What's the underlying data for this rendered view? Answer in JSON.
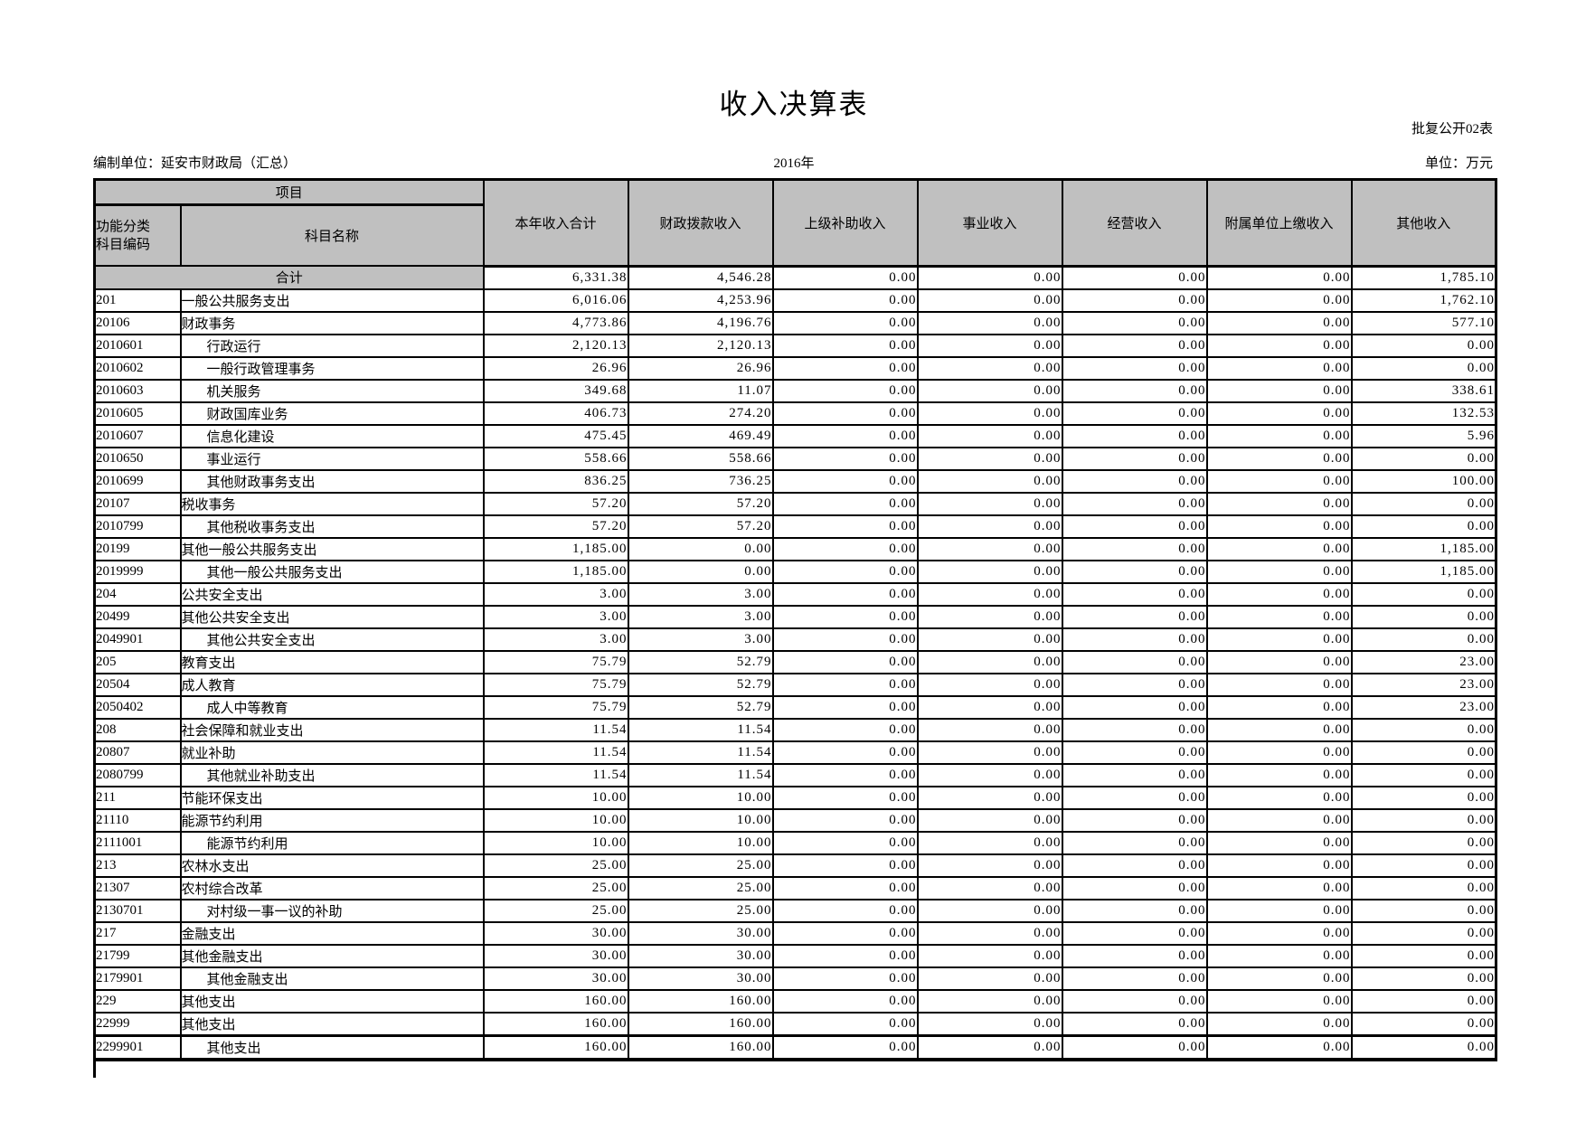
{
  "page": {
    "title": "收入决算表",
    "doc_number": "批复公开02表",
    "org_label": "编制单位：延安市财政局（汇总）",
    "year": "2016年",
    "unit_label": "单位：万元",
    "header_bg_color": "#c0c0c0"
  },
  "table": {
    "header": {
      "project": "项目",
      "code_header_lines": [
        "功能分类",
        "科目编码"
      ],
      "name_header": "科目名称",
      "value_columns": [
        "本年收入合计",
        "财政拨款收入",
        "上级补助收入",
        "事业收入",
        "经营收入",
        "附属单位上缴收入",
        "其他收入"
      ]
    },
    "total_row": {
      "label": "合计",
      "values": [
        "6,331.38",
        "4,546.28",
        "0.00",
        "0.00",
        "0.00",
        "0.00",
        "1,785.10"
      ]
    },
    "rows": [
      {
        "code": "201",
        "name": "一般公共服务支出",
        "indent": false,
        "values": [
          "6,016.06",
          "4,253.96",
          "0.00",
          "0.00",
          "0.00",
          "0.00",
          "1,762.10"
        ]
      },
      {
        "code": "20106",
        "name": "财政事务",
        "indent": false,
        "values": [
          "4,773.86",
          "4,196.76",
          "0.00",
          "0.00",
          "0.00",
          "0.00",
          "577.10"
        ]
      },
      {
        "code": "2010601",
        "name": "行政运行",
        "indent": true,
        "values": [
          "2,120.13",
          "2,120.13",
          "0.00",
          "0.00",
          "0.00",
          "0.00",
          "0.00"
        ]
      },
      {
        "code": "2010602",
        "name": "一般行政管理事务",
        "indent": true,
        "values": [
          "26.96",
          "26.96",
          "0.00",
          "0.00",
          "0.00",
          "0.00",
          "0.00"
        ]
      },
      {
        "code": "2010603",
        "name": "机关服务",
        "indent": true,
        "values": [
          "349.68",
          "11.07",
          "0.00",
          "0.00",
          "0.00",
          "0.00",
          "338.61"
        ]
      },
      {
        "code": "2010605",
        "name": "财政国库业务",
        "indent": true,
        "values": [
          "406.73",
          "274.20",
          "0.00",
          "0.00",
          "0.00",
          "0.00",
          "132.53"
        ]
      },
      {
        "code": "2010607",
        "name": "信息化建设",
        "indent": true,
        "values": [
          "475.45",
          "469.49",
          "0.00",
          "0.00",
          "0.00",
          "0.00",
          "5.96"
        ]
      },
      {
        "code": "2010650",
        "name": "事业运行",
        "indent": true,
        "values": [
          "558.66",
          "558.66",
          "0.00",
          "0.00",
          "0.00",
          "0.00",
          "0.00"
        ]
      },
      {
        "code": "2010699",
        "name": "其他财政事务支出",
        "indent": true,
        "values": [
          "836.25",
          "736.25",
          "0.00",
          "0.00",
          "0.00",
          "0.00",
          "100.00"
        ]
      },
      {
        "code": "20107",
        "name": "税收事务",
        "indent": false,
        "values": [
          "57.20",
          "57.20",
          "0.00",
          "0.00",
          "0.00",
          "0.00",
          "0.00"
        ]
      },
      {
        "code": "2010799",
        "name": "其他税收事务支出",
        "indent": true,
        "values": [
          "57.20",
          "57.20",
          "0.00",
          "0.00",
          "0.00",
          "0.00",
          "0.00"
        ]
      },
      {
        "code": "20199",
        "name": "其他一般公共服务支出",
        "indent": false,
        "values": [
          "1,185.00",
          "0.00",
          "0.00",
          "0.00",
          "0.00",
          "0.00",
          "1,185.00"
        ]
      },
      {
        "code": "2019999",
        "name": "其他一般公共服务支出",
        "indent": true,
        "values": [
          "1,185.00",
          "0.00",
          "0.00",
          "0.00",
          "0.00",
          "0.00",
          "1,185.00"
        ]
      },
      {
        "code": "204",
        "name": "公共安全支出",
        "indent": false,
        "values": [
          "3.00",
          "3.00",
          "0.00",
          "0.00",
          "0.00",
          "0.00",
          "0.00"
        ]
      },
      {
        "code": "20499",
        "name": "其他公共安全支出",
        "indent": false,
        "values": [
          "3.00",
          "3.00",
          "0.00",
          "0.00",
          "0.00",
          "0.00",
          "0.00"
        ]
      },
      {
        "code": "2049901",
        "name": "其他公共安全支出",
        "indent": true,
        "values": [
          "3.00",
          "3.00",
          "0.00",
          "0.00",
          "0.00",
          "0.00",
          "0.00"
        ]
      },
      {
        "code": "205",
        "name": "教育支出",
        "indent": false,
        "values": [
          "75.79",
          "52.79",
          "0.00",
          "0.00",
          "0.00",
          "0.00",
          "23.00"
        ]
      },
      {
        "code": "20504",
        "name": "成人教育",
        "indent": false,
        "values": [
          "75.79",
          "52.79",
          "0.00",
          "0.00",
          "0.00",
          "0.00",
          "23.00"
        ]
      },
      {
        "code": "2050402",
        "name": "成人中等教育",
        "indent": true,
        "values": [
          "75.79",
          "52.79",
          "0.00",
          "0.00",
          "0.00",
          "0.00",
          "23.00"
        ]
      },
      {
        "code": "208",
        "name": "社会保障和就业支出",
        "indent": false,
        "values": [
          "11.54",
          "11.54",
          "0.00",
          "0.00",
          "0.00",
          "0.00",
          "0.00"
        ]
      },
      {
        "code": "20807",
        "name": "就业补助",
        "indent": false,
        "values": [
          "11.54",
          "11.54",
          "0.00",
          "0.00",
          "0.00",
          "0.00",
          "0.00"
        ]
      },
      {
        "code": "2080799",
        "name": "其他就业补助支出",
        "indent": true,
        "values": [
          "11.54",
          "11.54",
          "0.00",
          "0.00",
          "0.00",
          "0.00",
          "0.00"
        ]
      },
      {
        "code": "211",
        "name": "节能环保支出",
        "indent": false,
        "values": [
          "10.00",
          "10.00",
          "0.00",
          "0.00",
          "0.00",
          "0.00",
          "0.00"
        ]
      },
      {
        "code": "21110",
        "name": "能源节约利用",
        "indent": false,
        "values": [
          "10.00",
          "10.00",
          "0.00",
          "0.00",
          "0.00",
          "0.00",
          "0.00"
        ]
      },
      {
        "code": "2111001",
        "name": "能源节约利用",
        "indent": true,
        "values": [
          "10.00",
          "10.00",
          "0.00",
          "0.00",
          "0.00",
          "0.00",
          "0.00"
        ]
      },
      {
        "code": "213",
        "name": "农林水支出",
        "indent": false,
        "values": [
          "25.00",
          "25.00",
          "0.00",
          "0.00",
          "0.00",
          "0.00",
          "0.00"
        ]
      },
      {
        "code": "21307",
        "name": "农村综合改革",
        "indent": false,
        "values": [
          "25.00",
          "25.00",
          "0.00",
          "0.00",
          "0.00",
          "0.00",
          "0.00"
        ]
      },
      {
        "code": "2130701",
        "name": "对村级一事一议的补助",
        "indent": true,
        "values": [
          "25.00",
          "25.00",
          "0.00",
          "0.00",
          "0.00",
          "0.00",
          "0.00"
        ]
      },
      {
        "code": "217",
        "name": "金融支出",
        "indent": false,
        "values": [
          "30.00",
          "30.00",
          "0.00",
          "0.00",
          "0.00",
          "0.00",
          "0.00"
        ]
      },
      {
        "code": "21799",
        "name": "其他金融支出",
        "indent": false,
        "values": [
          "30.00",
          "30.00",
          "0.00",
          "0.00",
          "0.00",
          "0.00",
          "0.00"
        ]
      },
      {
        "code": "2179901",
        "name": "其他金融支出",
        "indent": true,
        "values": [
          "30.00",
          "30.00",
          "0.00",
          "0.00",
          "0.00",
          "0.00",
          "0.00"
        ]
      },
      {
        "code": "229",
        "name": "其他支出",
        "indent": false,
        "values": [
          "160.00",
          "160.00",
          "0.00",
          "0.00",
          "0.00",
          "0.00",
          "0.00"
        ]
      },
      {
        "code": "22999",
        "name": "其他支出",
        "indent": false,
        "values": [
          "160.00",
          "160.00",
          "0.00",
          "0.00",
          "0.00",
          "0.00",
          "0.00"
        ]
      },
      {
        "code": "2299901",
        "name": "其他支出",
        "indent": true,
        "values": [
          "160.00",
          "160.00",
          "0.00",
          "0.00",
          "0.00",
          "0.00",
          "0.00"
        ],
        "page_break_border": true
      }
    ]
  }
}
